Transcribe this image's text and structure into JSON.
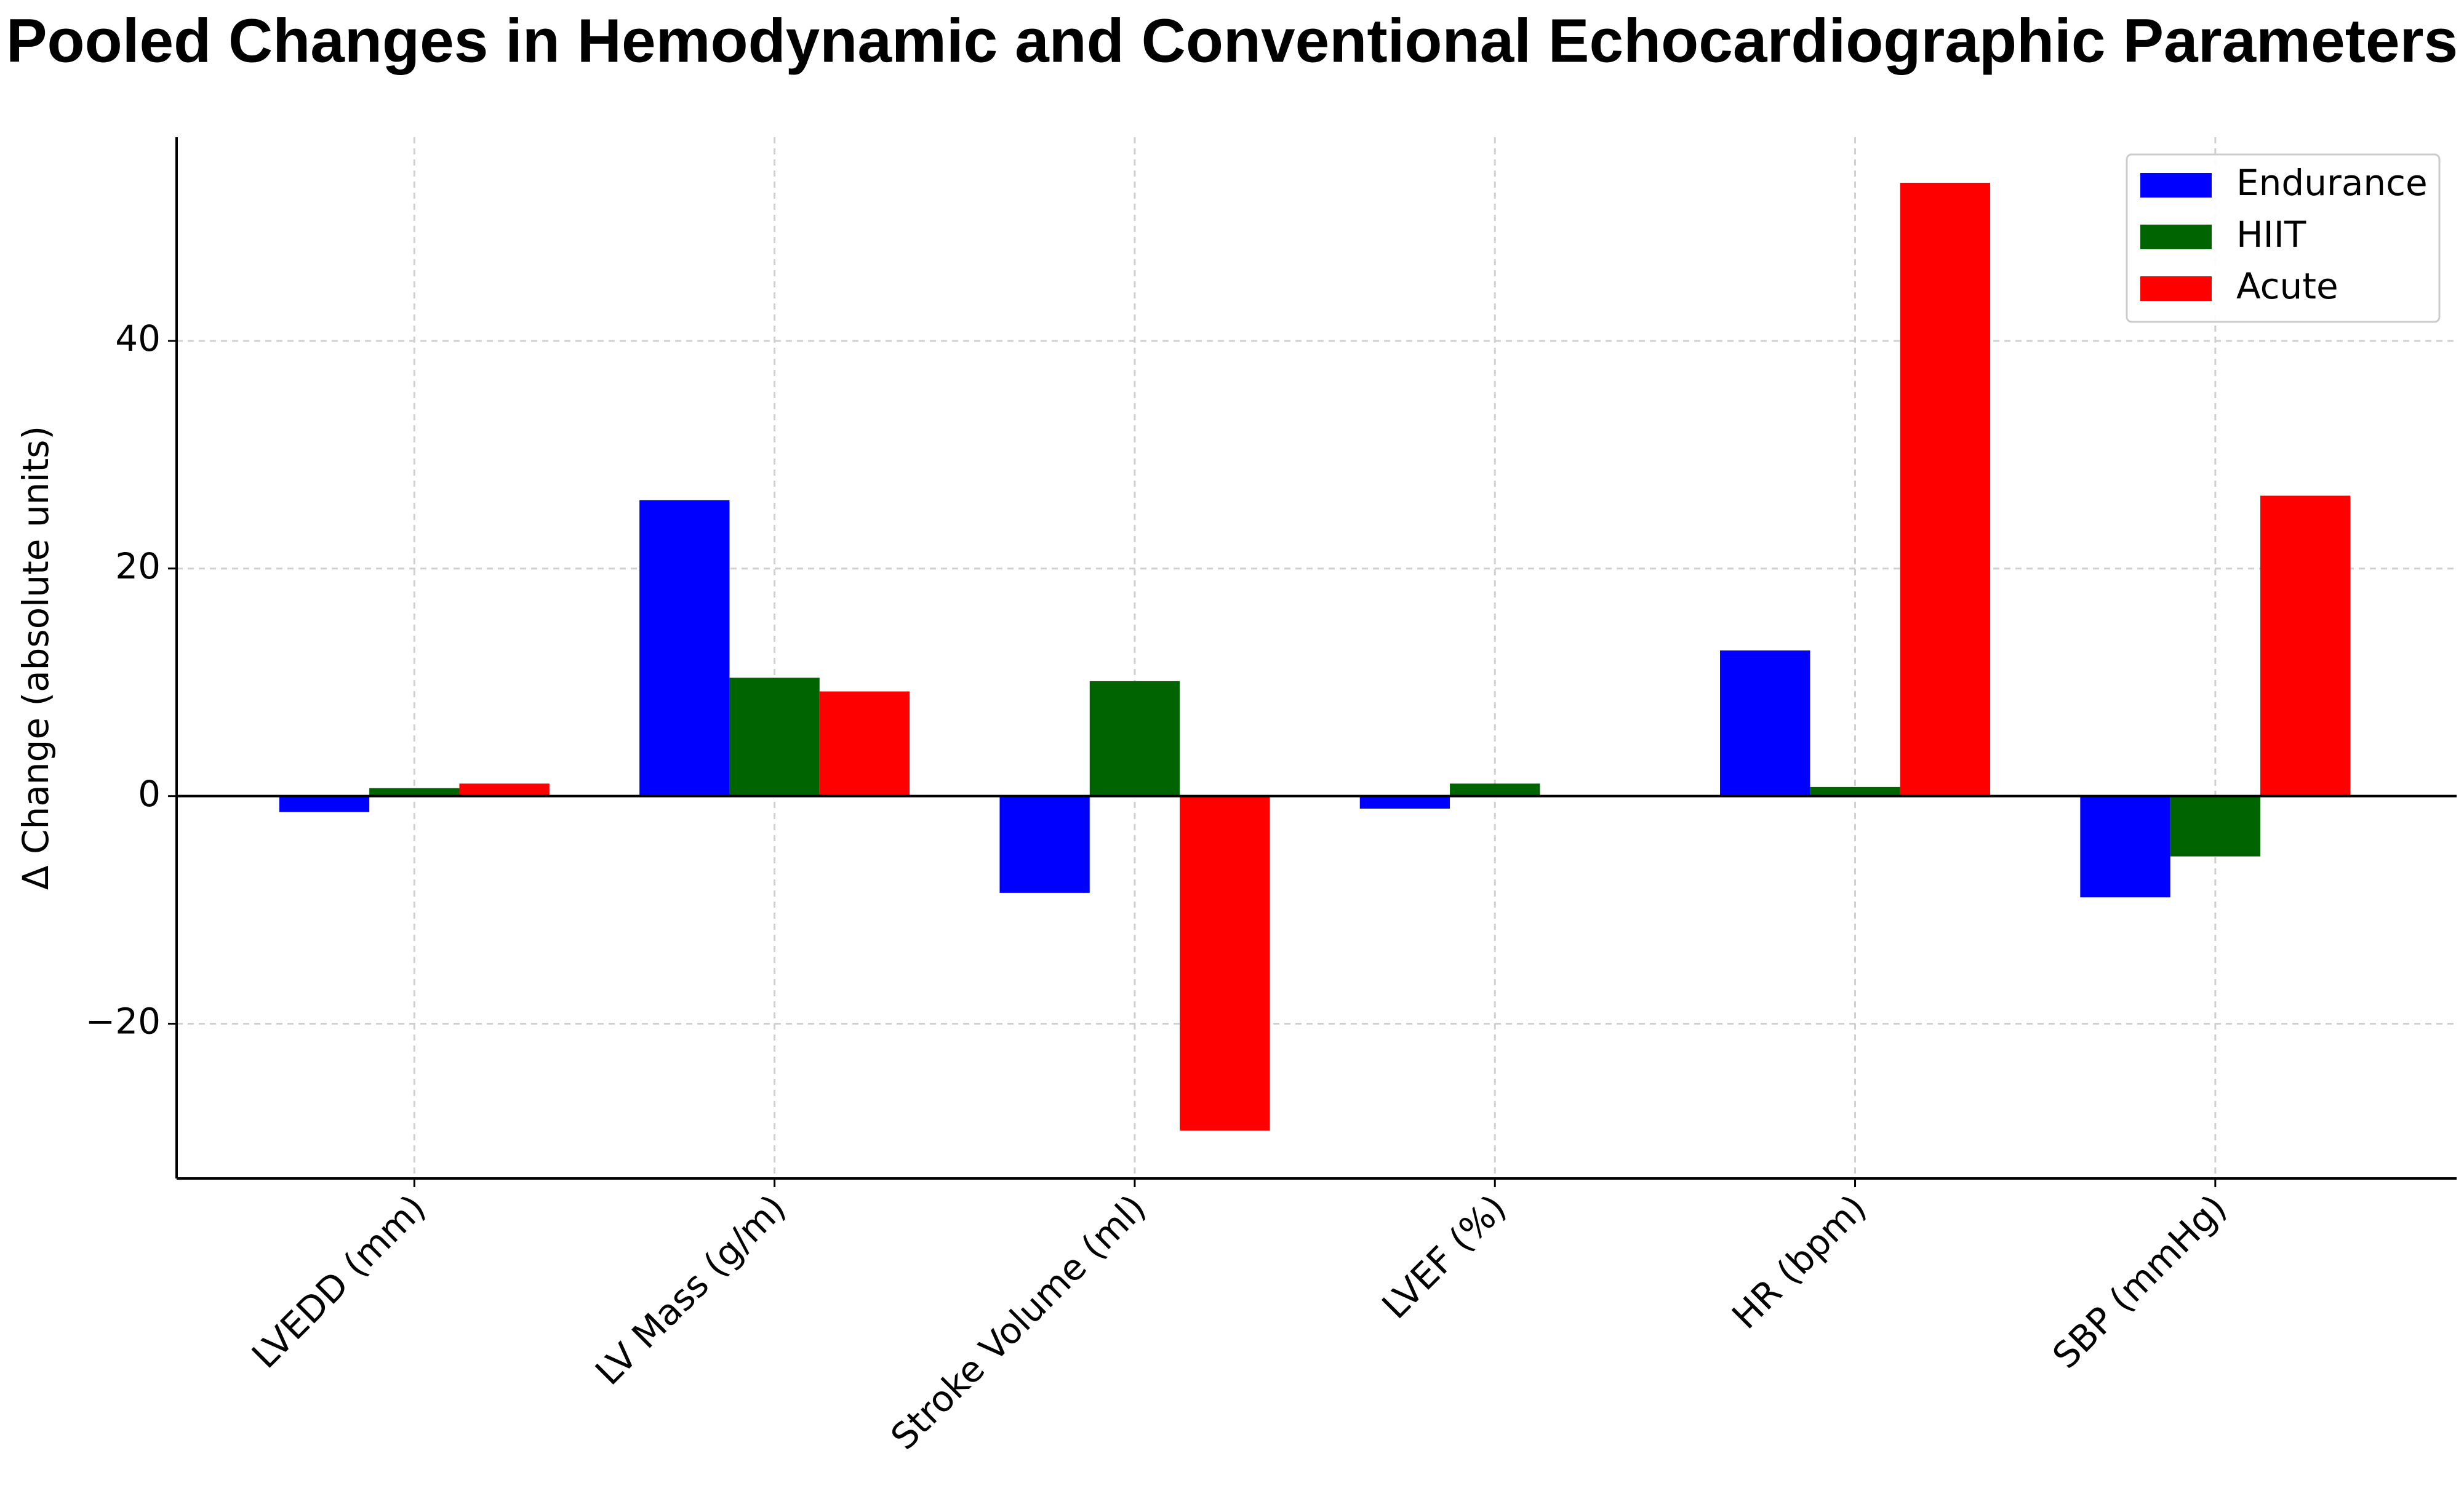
{
  "chart_data": {
    "type": "bar",
    "title": "Pooled Changes in Hemodynamic and Conventional Echocardiographic Parameters",
    "y_label": "Δ Change (absolute units)",
    "categories": [
      "LVEDD (mm)",
      "LV Mass (g/m)",
      "Stroke Volume (ml)",
      "LVEF (%)",
      "HR (bpm)",
      "SBP (mmHg)"
    ],
    "series": [
      {
        "name": "Endurance",
        "color": "#0000ff",
        "values": [
          -1.4,
          26,
          -8.5,
          -1.1,
          12.8,
          -8.9
        ]
      },
      {
        "name": "HIIT",
        "color": "#006400",
        "values": [
          0.7,
          10.4,
          10.1,
          1.1,
          0.8,
          -5.3
        ]
      },
      {
        "name": "Acute",
        "color": "#ff0000",
        "values": [
          1.1,
          9.2,
          -29.4,
          0,
          53.9,
          26.4
        ]
      }
    ],
    "ylim": [
      -33.6,
      57.9
    ],
    "yticks": [
      {
        "value": -20,
        "label": "−20"
      },
      0,
      20,
      40
    ],
    "grid": true,
    "legend": "upper right"
  }
}
